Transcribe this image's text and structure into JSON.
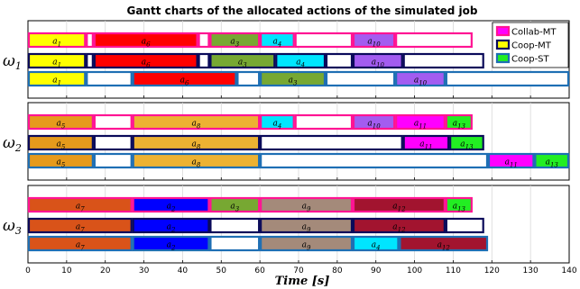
{
  "chart_data": {
    "type": "gantt",
    "title": "Gantt charts of the allocated actions of the simulated job",
    "xlabel": "Time [s]",
    "xlim": [
      0,
      140
    ],
    "xticks": [
      0,
      10,
      20,
      30,
      40,
      50,
      60,
      70,
      80,
      90,
      100,
      110,
      120,
      130,
      140
    ],
    "grid": true,
    "legend_position": "top-right",
    "policies": [
      {
        "name": "Collab-MT",
        "color": "#ff1493"
      },
      {
        "name": "Coop-MT",
        "color": "#0a0a5a"
      },
      {
        "name": "Coop-ST",
        "color": "#1e6fb4"
      }
    ],
    "colors": {
      "a1": "#ffff00",
      "a3": "#77a832",
      "a4": "#00e5ff",
      "a5": "#e69a1c",
      "a6": "#ff0000",
      "a7": "#d95319",
      "a8": "#edb232",
      "a9": "#a48a7a",
      "a10": "#a35cf0",
      "a11": "#ff00ff",
      "a12": "#a2142f",
      "a13": "#22ee22",
      "idle": "#ffffff"
    },
    "robots": [
      {
        "label": "ω1",
        "rows": [
          {
            "policy": "Collab-MT",
            "bars": [
              {
                "a": "a1",
                "s": 0,
                "e": 15
              },
              {
                "a": "idle",
                "s": 15,
                "e": 17
              },
              {
                "a": "a6",
                "s": 17,
                "e": 44
              },
              {
                "a": "idle",
                "s": 44,
                "e": 47
              },
              {
                "a": "a3",
                "s": 47,
                "e": 60
              },
              {
                "a": "a4",
                "s": 60,
                "e": 69
              },
              {
                "a": "idle",
                "s": 69,
                "e": 84
              },
              {
                "a": "a10",
                "s": 84,
                "e": 95
              },
              {
                "a": "idle",
                "s": 95,
                "e": 115
              }
            ]
          },
          {
            "policy": "Coop-MT",
            "bars": [
              {
                "a": "a1",
                "s": 0,
                "e": 15
              },
              {
                "a": "idle",
                "s": 15,
                "e": 17
              },
              {
                "a": "a6",
                "s": 17,
                "e": 44
              },
              {
                "a": "idle",
                "s": 44,
                "e": 47
              },
              {
                "a": "a3",
                "s": 47,
                "e": 64
              },
              {
                "a": "a4",
                "s": 64,
                "e": 77
              },
              {
                "a": "idle",
                "s": 77,
                "e": 84
              },
              {
                "a": "a10",
                "s": 84,
                "e": 97
              },
              {
                "a": "idle",
                "s": 97,
                "e": 118
              }
            ]
          },
          {
            "policy": "Coop-ST",
            "bars": [
              {
                "a": "a1",
                "s": 0,
                "e": 15
              },
              {
                "a": "idle",
                "s": 15,
                "e": 27
              },
              {
                "a": "a6",
                "s": 27,
                "e": 54
              },
              {
                "a": "idle",
                "s": 54,
                "e": 60
              },
              {
                "a": "a3",
                "s": 60,
                "e": 77
              },
              {
                "a": "idle",
                "s": 77,
                "e": 95
              },
              {
                "a": "a10",
                "s": 95,
                "e": 108
              },
              {
                "a": "idle",
                "s": 108,
                "e": 140
              }
            ]
          }
        ]
      },
      {
        "label": "ω2",
        "rows": [
          {
            "policy": "Collab-MT",
            "bars": [
              {
                "a": "a5",
                "s": 0,
                "e": 17
              },
              {
                "a": "idle",
                "s": 17,
                "e": 27
              },
              {
                "a": "a8",
                "s": 27,
                "e": 60
              },
              {
                "a": "a4",
                "s": 60,
                "e": 69
              },
              {
                "a": "idle",
                "s": 69,
                "e": 84
              },
              {
                "a": "a10",
                "s": 84,
                "e": 95
              },
              {
                "a": "a11",
                "s": 95,
                "e": 108
              },
              {
                "a": "a13",
                "s": 108,
                "e": 115
              }
            ]
          },
          {
            "policy": "Coop-MT",
            "bars": [
              {
                "a": "a5",
                "s": 0,
                "e": 17
              },
              {
                "a": "idle",
                "s": 17,
                "e": 27
              },
              {
                "a": "a8",
                "s": 27,
                "e": 60
              },
              {
                "a": "idle",
                "s": 60,
                "e": 97
              },
              {
                "a": "a11",
                "s": 97,
                "e": 109
              },
              {
                "a": "a13",
                "s": 109,
                "e": 118
              }
            ]
          },
          {
            "policy": "Coop-ST",
            "bars": [
              {
                "a": "a5",
                "s": 0,
                "e": 17
              },
              {
                "a": "idle",
                "s": 17,
                "e": 27
              },
              {
                "a": "a8",
                "s": 27,
                "e": 60
              },
              {
                "a": "idle",
                "s": 60,
                "e": 119
              },
              {
                "a": "a11",
                "s": 119,
                "e": 131
              },
              {
                "a": "a13",
                "s": 131,
                "e": 140
              }
            ]
          }
        ]
      },
      {
        "label": "ω3",
        "rows": [
          {
            "policy": "Collab-MT",
            "bars": [
              {
                "a": "a7",
                "s": 0,
                "e": 27
              },
              {
                "a": "a2",
                "s": 27,
                "e": 47
              },
              {
                "a": "a3",
                "s": 47,
                "e": 60
              },
              {
                "a": "a9",
                "s": 60,
                "e": 84
              },
              {
                "a": "a12",
                "s": 84,
                "e": 108
              },
              {
                "a": "a13",
                "s": 108,
                "e": 115
              }
            ]
          },
          {
            "policy": "Coop-MT",
            "bars": [
              {
                "a": "a7",
                "s": 0,
                "e": 27
              },
              {
                "a": "a2",
                "s": 27,
                "e": 47
              },
              {
                "a": "idle",
                "s": 47,
                "e": 60
              },
              {
                "a": "a9",
                "s": 60,
                "e": 84
              },
              {
                "a": "a12",
                "s": 84,
                "e": 108
              },
              {
                "a": "idle",
                "s": 108,
                "e": 118
              }
            ]
          },
          {
            "policy": "Coop-ST",
            "bars": [
              {
                "a": "a7",
                "s": 0,
                "e": 27
              },
              {
                "a": "a2",
                "s": 27,
                "e": 47
              },
              {
                "a": "idle",
                "s": 47,
                "e": 60
              },
              {
                "a": "a9",
                "s": 60,
                "e": 84
              },
              {
                "a": "a4",
                "s": 84,
                "e": 96
              },
              {
                "a": "a12",
                "s": 96,
                "e": 119
              }
            ]
          }
        ]
      }
    ]
  }
}
